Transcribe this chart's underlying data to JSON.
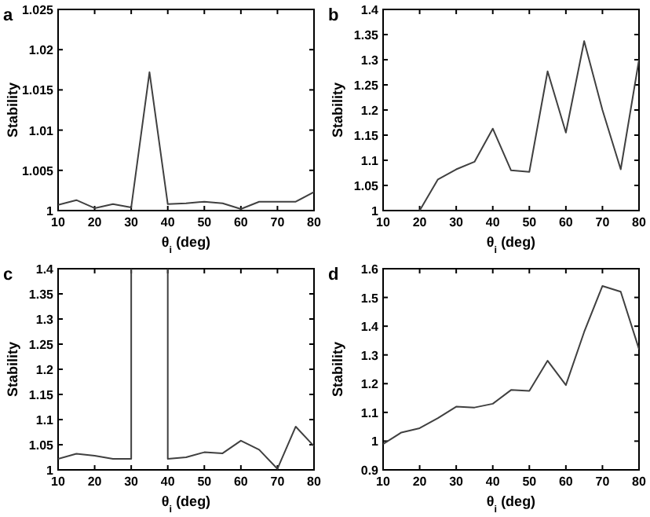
{
  "chart_data": [
    {
      "type": "line",
      "title": "a",
      "xlabel": "θ$_{i}$ (deg)",
      "ylabel": "Stability",
      "x": [
        10,
        15,
        20,
        25,
        30,
        35,
        40,
        45,
        50,
        55,
        60,
        65,
        70,
        75,
        80
      ],
      "series": [
        {
          "color": "#404040",
          "values": [
            1.0007,
            1.0013,
            1.0003,
            1.0008,
            1.0004,
            1.0172,
            1.0008,
            1.0009,
            1.0011,
            1.0009,
            1.0002,
            1.0011,
            1.0011,
            1.0011,
            1.0023
          ]
        }
      ],
      "xlim": [
        10,
        80
      ],
      "xticks": [
        10,
        20,
        30,
        40,
        50,
        60,
        70,
        80
      ],
      "ylim": [
        1,
        1.025
      ],
      "yticks": [
        1,
        1.005,
        1.01,
        1.015,
        1.02,
        1.025
      ],
      "grid": false
    },
    {
      "type": "line",
      "title": "b",
      "xlabel": "θ$_{i}$ (deg)",
      "ylabel": "Stability",
      "series": [
        {
          "color": "#404040",
          "x": [
            20,
            25,
            30,
            35,
            40,
            45,
            50,
            55,
            60,
            65,
            70,
            75,
            80
          ],
          "values": [
            1.0,
            1.062,
            1.082,
            1.097,
            1.163,
            1.08,
            1.077,
            1.277,
            1.155,
            1.337,
            1.2,
            1.082,
            1.3
          ]
        }
      ],
      "xlim": [
        10,
        80
      ],
      "xticks": [
        10,
        20,
        30,
        40,
        50,
        60,
        70,
        80
      ],
      "ylim": [
        1,
        1.4
      ],
      "yticks": [
        1,
        1.05,
        1.1,
        1.15,
        1.2,
        1.25,
        1.3,
        1.35,
        1.4
      ],
      "grid": false
    },
    {
      "type": "line",
      "title": "c",
      "xlabel": "θ$_{i}$ (deg)",
      "ylabel": "Stability",
      "series": [
        {
          "color": "#404040",
          "x": [
            10,
            15,
            20,
            25,
            30,
            30,
            35,
            40,
            40,
            45,
            50,
            55,
            60,
            65,
            70,
            75,
            80
          ],
          "values": [
            1.022,
            1.032,
            1.028,
            1.022,
            1.022,
            1.4,
            null,
            1.4,
            1.022,
            1.025,
            1.035,
            1.033,
            1.058,
            1.04,
            1.002,
            1.086,
            1.047
          ]
        }
      ],
      "xlim": [
        10,
        80
      ],
      "xticks": [
        10,
        20,
        30,
        40,
        50,
        60,
        70,
        80
      ],
      "ylim": [
        1,
        1.4
      ],
      "yticks": [
        1,
        1.05,
        1.1,
        1.15,
        1.2,
        1.25,
        1.3,
        1.35,
        1.4
      ],
      "grid": false
    },
    {
      "type": "line",
      "title": "d",
      "xlabel": "θ$_{i}$ (deg)",
      "ylabel": "Stability",
      "x": [
        10,
        15,
        20,
        25,
        30,
        35,
        40,
        45,
        50,
        55,
        60,
        65,
        70,
        75,
        80
      ],
      "series": [
        {
          "color": "#404040",
          "values": [
            0.99,
            1.03,
            1.045,
            1.08,
            1.12,
            1.117,
            1.13,
            1.178,
            1.175,
            1.28,
            1.195,
            1.38,
            1.54,
            1.52,
            1.32
          ]
        }
      ],
      "xlim": [
        10,
        80
      ],
      "xticks": [
        10,
        20,
        30,
        40,
        50,
        60,
        70,
        80
      ],
      "ylim": [
        0.9,
        1.6
      ],
      "yticks": [
        0.9,
        1,
        1.1,
        1.2,
        1.3,
        1.4,
        1.5,
        1.6
      ],
      "grid": false
    }
  ]
}
